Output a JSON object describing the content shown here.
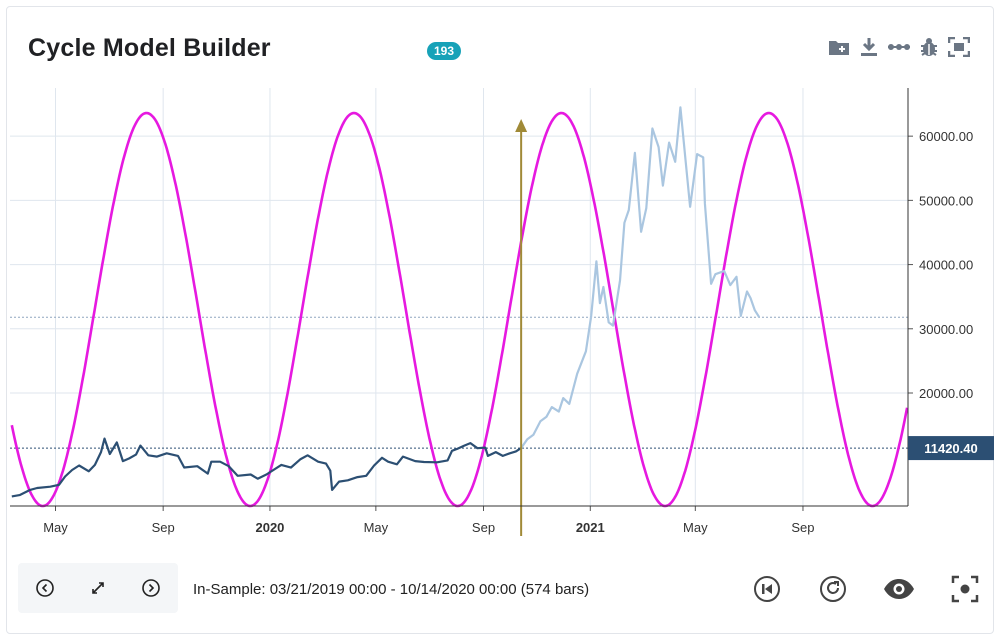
{
  "header": {
    "title": "Cycle Model Builder",
    "badge": "193"
  },
  "toolbar": {
    "icons": [
      "folder-plus-icon",
      "download-icon",
      "line-dots-icon",
      "bug-icon",
      "expand-icon"
    ]
  },
  "status": {
    "text": "In-Sample: 03/21/2019 00:00 - 10/14/2020 00:00 (574 bars)"
  },
  "controls": {
    "left": [
      "chevron-left-icon",
      "expand-arrows-icon",
      "chevron-right-icon"
    ],
    "right": [
      "skip-start-icon",
      "refresh-icon",
      "eye-icon",
      "focus-icon"
    ]
  },
  "colors": {
    "cycle": "#e619e0",
    "in_sample": "#2c4f73",
    "out_sample": "#aac6e0",
    "marker": "#a08a37",
    "price_tag": "#2c4f73",
    "grid": "#dfe6ee"
  },
  "chart_data": {
    "type": "line",
    "x_type": "date",
    "x_range": [
      "2019-03-10",
      "2021-12-30"
    ],
    "ylim": [
      2400,
      67500
    ],
    "y_ticks": [
      20000,
      30000,
      40000,
      50000,
      60000
    ],
    "y_tick_labels": [
      "20000.00",
      "30000.00",
      "40000.00",
      "50000.00",
      "60000.00"
    ],
    "x_ticks": [
      {
        "date": "2019-05-01",
        "label": "May",
        "bold": false
      },
      {
        "date": "2019-09-01",
        "label": "Sep",
        "bold": false
      },
      {
        "date": "2020-01-01",
        "label": "2020",
        "bold": true
      },
      {
        "date": "2020-05-01",
        "label": "May",
        "bold": false
      },
      {
        "date": "2020-09-01",
        "label": "Sep",
        "bold": false
      },
      {
        "date": "2021-01-01",
        "label": "2021",
        "bold": true
      },
      {
        "date": "2021-05-01",
        "label": "May",
        "bold": false
      },
      {
        "date": "2021-09-01",
        "label": "Sep",
        "bold": false
      }
    ],
    "last_price": 11420.4,
    "last_price_label": "11420.40",
    "out_sample_last": 31800,
    "marker_date": "2020-10-14",
    "series": [
      {
        "role": "in-sample",
        "points": [
          [
            "2019-03-12",
            3900
          ],
          [
            "2019-03-21",
            4100
          ],
          [
            "2019-04-02",
            4900
          ],
          [
            "2019-04-10",
            5200
          ],
          [
            "2019-04-25",
            5400
          ],
          [
            "2019-05-05",
            5700
          ],
          [
            "2019-05-12",
            7000
          ],
          [
            "2019-05-20",
            8000
          ],
          [
            "2019-05-28",
            8700
          ],
          [
            "2019-06-08",
            7800
          ],
          [
            "2019-06-15",
            8800
          ],
          [
            "2019-06-22",
            10800
          ],
          [
            "2019-06-26",
            12900
          ],
          [
            "2019-07-02",
            10500
          ],
          [
            "2019-07-10",
            12300
          ],
          [
            "2019-07-17",
            9400
          ],
          [
            "2019-07-24",
            9800
          ],
          [
            "2019-08-01",
            10400
          ],
          [
            "2019-08-06",
            11800
          ],
          [
            "2019-08-15",
            10300
          ],
          [
            "2019-08-25",
            10100
          ],
          [
            "2019-09-05",
            10600
          ],
          [
            "2019-09-18",
            10200
          ],
          [
            "2019-09-25",
            8400
          ],
          [
            "2019-10-10",
            8600
          ],
          [
            "2019-10-22",
            7450
          ],
          [
            "2019-10-26",
            9300
          ],
          [
            "2019-11-05",
            9300
          ],
          [
            "2019-11-15",
            8600
          ],
          [
            "2019-11-25",
            7100
          ],
          [
            "2019-12-10",
            7300
          ],
          [
            "2019-12-18",
            6650
          ],
          [
            "2019-12-28",
            7300
          ],
          [
            "2020-01-14",
            8800
          ],
          [
            "2020-01-25",
            8400
          ],
          [
            "2020-02-05",
            9700
          ],
          [
            "2020-02-13",
            10300
          ],
          [
            "2020-02-25",
            9300
          ],
          [
            "2020-03-05",
            9000
          ],
          [
            "2020-03-10",
            7900
          ],
          [
            "2020-03-12",
            4900
          ],
          [
            "2020-03-20",
            6200
          ],
          [
            "2020-03-30",
            6400
          ],
          [
            "2020-04-10",
            6900
          ],
          [
            "2020-04-20",
            7100
          ],
          [
            "2020-04-29",
            8700
          ],
          [
            "2020-05-08",
            9900
          ],
          [
            "2020-05-15",
            9300
          ],
          [
            "2020-05-25",
            8900
          ],
          [
            "2020-06-01",
            10100
          ],
          [
            "2020-06-15",
            9400
          ],
          [
            "2020-06-25",
            9250
          ],
          [
            "2020-07-10",
            9200
          ],
          [
            "2020-07-22",
            9500
          ],
          [
            "2020-07-27",
            11000
          ],
          [
            "2020-08-02",
            11300
          ],
          [
            "2020-08-10",
            11800
          ],
          [
            "2020-08-17",
            12200
          ],
          [
            "2020-08-25",
            11400
          ],
          [
            "2020-09-03",
            11500
          ],
          [
            "2020-09-06",
            10200
          ],
          [
            "2020-09-15",
            10800
          ],
          [
            "2020-09-23",
            10200
          ],
          [
            "2020-10-01",
            10600
          ],
          [
            "2020-10-08",
            10900
          ],
          [
            "2020-10-14",
            11420
          ]
        ]
      },
      {
        "role": "out-of-sample",
        "points": [
          [
            "2020-10-14",
            11420
          ],
          [
            "2020-10-21",
            12800
          ],
          [
            "2020-10-28",
            13500
          ],
          [
            "2020-11-05",
            15600
          ],
          [
            "2020-11-12",
            16300
          ],
          [
            "2020-11-18",
            17800
          ],
          [
            "2020-11-26",
            17100
          ],
          [
            "2020-12-01",
            19200
          ],
          [
            "2020-12-08",
            18300
          ],
          [
            "2020-12-17",
            23000
          ],
          [
            "2020-12-27",
            26500
          ],
          [
            "2021-01-02",
            32000
          ],
          [
            "2021-01-08",
            40500
          ],
          [
            "2021-01-12",
            34000
          ],
          [
            "2021-01-16",
            36500
          ],
          [
            "2021-01-22",
            31000
          ],
          [
            "2021-01-27",
            30500
          ],
          [
            "2021-02-04",
            37500
          ],
          [
            "2021-02-09",
            46500
          ],
          [
            "2021-02-14",
            48500
          ],
          [
            "2021-02-21",
            57400
          ],
          [
            "2021-02-28",
            45100
          ],
          [
            "2021-03-06",
            48800
          ],
          [
            "2021-03-13",
            61200
          ],
          [
            "2021-03-20",
            58300
          ],
          [
            "2021-03-25",
            52300
          ],
          [
            "2021-04-01",
            59000
          ],
          [
            "2021-04-08",
            56000
          ],
          [
            "2021-04-14",
            64500
          ],
          [
            "2021-04-20",
            56000
          ],
          [
            "2021-04-25",
            49000
          ],
          [
            "2021-05-03",
            57200
          ],
          [
            "2021-05-10",
            56700
          ],
          [
            "2021-05-12",
            49500
          ],
          [
            "2021-05-19",
            37000
          ],
          [
            "2021-05-24",
            38500
          ],
          [
            "2021-06-03",
            39000
          ],
          [
            "2021-06-10",
            36800
          ],
          [
            "2021-06-17",
            38100
          ],
          [
            "2021-06-22",
            32000
          ],
          [
            "2021-06-29",
            35800
          ],
          [
            "2021-07-03",
            34800
          ],
          [
            "2021-07-08",
            32900
          ],
          [
            "2021-07-13",
            31800
          ]
        ]
      },
      {
        "role": "cycle",
        "amplitude_range": [
          2400,
          63600
        ],
        "period_days": 237,
        "peak_dates": [
          "2019-08-13",
          "2020-04-09",
          "2020-12-02",
          "2021-07-28"
        ],
        "start_date": "2019-03-12",
        "end_date": "2021-12-30"
      }
    ]
  }
}
